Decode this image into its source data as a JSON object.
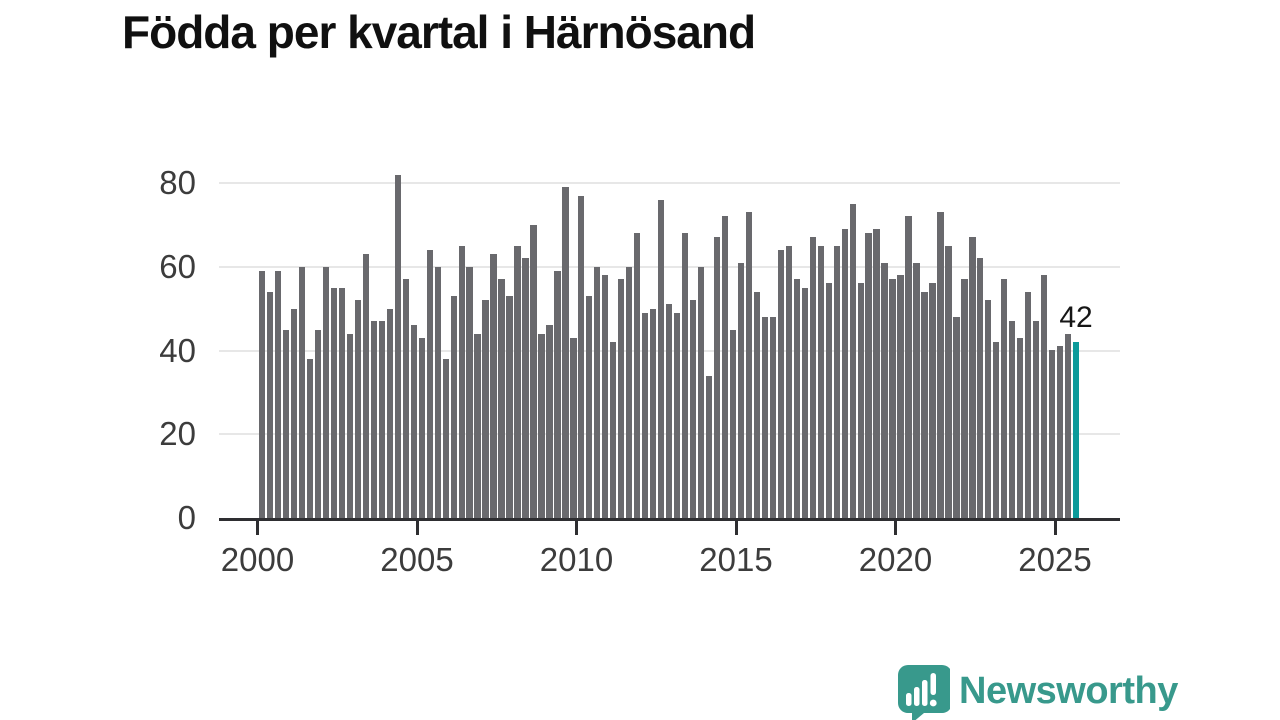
{
  "title": "Födda per kvartal i Härnösand",
  "branding": {
    "logo_text": "Newsworthy"
  },
  "annotation": {
    "last_value": "42"
  },
  "colors": {
    "bar": "#69696d",
    "highlight": "#0c9a9a",
    "axis": "#2e2e31",
    "grid": "#e7e7e7",
    "tick_label": "#3c3c3c",
    "title": "#101010",
    "annotation": "#161616",
    "logo": "#38998c"
  },
  "chart_data": {
    "type": "bar",
    "title": "Födda per kvartal i Härnösand",
    "x_unit": "quarter",
    "start": "2000-Q1",
    "end": "2025-Q3",
    "frequency": "quarterly",
    "values": [
      59,
      54,
      59,
      45,
      50,
      60,
      38,
      45,
      60,
      55,
      55,
      44,
      52,
      63,
      47,
      47,
      50,
      82,
      57,
      46,
      43,
      64,
      60,
      38,
      53,
      65,
      60,
      44,
      52,
      63,
      57,
      53,
      65,
      62,
      70,
      44,
      46,
      59,
      79,
      43,
      77,
      53,
      60,
      58,
      42,
      57,
      60,
      68,
      49,
      50,
      76,
      51,
      49,
      68,
      52,
      60,
      34,
      67,
      72,
      45,
      61,
      73,
      54,
      48,
      48,
      64,
      65,
      57,
      55,
      67,
      65,
      56,
      65,
      69,
      75,
      56,
      68,
      69,
      61,
      57,
      58,
      72,
      61,
      54,
      56,
      73,
      65,
      48,
      57,
      67,
      62,
      52,
      42,
      57,
      47,
      43,
      54,
      47,
      58,
      40,
      41,
      44,
      42
    ],
    "highlight_last": true,
    "annotation_label": "42",
    "x_ticks": [
      2000,
      2005,
      2010,
      2015,
      2020,
      2025
    ],
    "y_ticks": [
      0,
      20,
      40,
      60,
      80
    ],
    "ylim": [
      0,
      85
    ],
    "grid": "horizontal",
    "legend": "none"
  }
}
